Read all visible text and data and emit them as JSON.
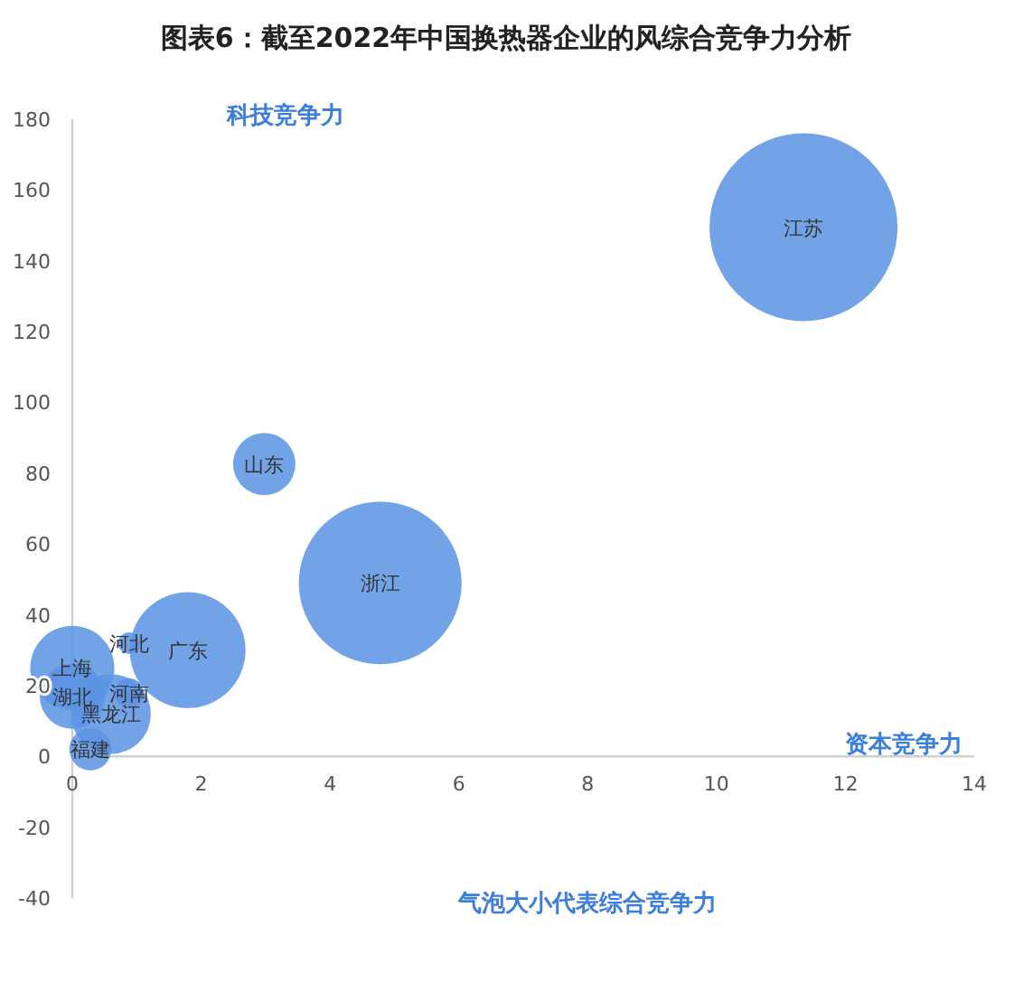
{
  "chart_data": {
    "type": "bubble",
    "title": "图表6：截至2022年中国换热器企业的风综合竞争力分析",
    "xlabel": "资本竞争力",
    "ylabel": "科技竞争力",
    "annotations": [
      "气泡大小代表综合竞争力",
      {
        "text": "江苏",
        "x": 11.35,
        "y": 149.5
      },
      {
        "text": "山东",
        "x": 2.98,
        "y": 82.6
      },
      {
        "text": "浙江",
        "x": 4.78,
        "y": 49
      },
      {
        "text": "广东",
        "x": 1.79,
        "y": 30
      },
      {
        "text": "河北",
        "x": 0.88,
        "y": 32
      },
      {
        "text": "上海",
        "x": 0,
        "y": 25
      },
      {
        "text": "河南",
        "x": 0.88,
        "y": 18
      },
      {
        "text": "湖北",
        "x": 0,
        "y": 17
      },
      {
        "text": "黑龙江",
        "x": 0.6,
        "y": 12
      },
      {
        "text": "福建",
        "x": 0.28,
        "y": 2
      }
    ],
    "series": [
      {
        "color": "#5a93e3",
        "x": [
          11.35,
          2.98,
          4.78,
          1.79,
          0.88,
          0,
          0.88,
          0,
          0.6,
          0.28
        ],
        "values": [
          149.5,
          82.6,
          49,
          30,
          32,
          25,
          18,
          17,
          12,
          2
        ],
        "sizes": [
          1,
          0.11,
          0.75,
          0.38,
          0.013,
          0.2,
          0.024,
          0.12,
          0.18,
          0.05
        ]
      }
    ],
    "xlim": [
      0,
      14
    ],
    "xticks": [
      0,
      2,
      4,
      6,
      8,
      10,
      12,
      14
    ],
    "ylim": [
      -40,
      180
    ],
    "yticks": [
      -40,
      -20,
      0,
      20,
      40,
      60,
      80,
      100,
      120,
      140,
      160,
      180
    ],
    "grid": false
  }
}
